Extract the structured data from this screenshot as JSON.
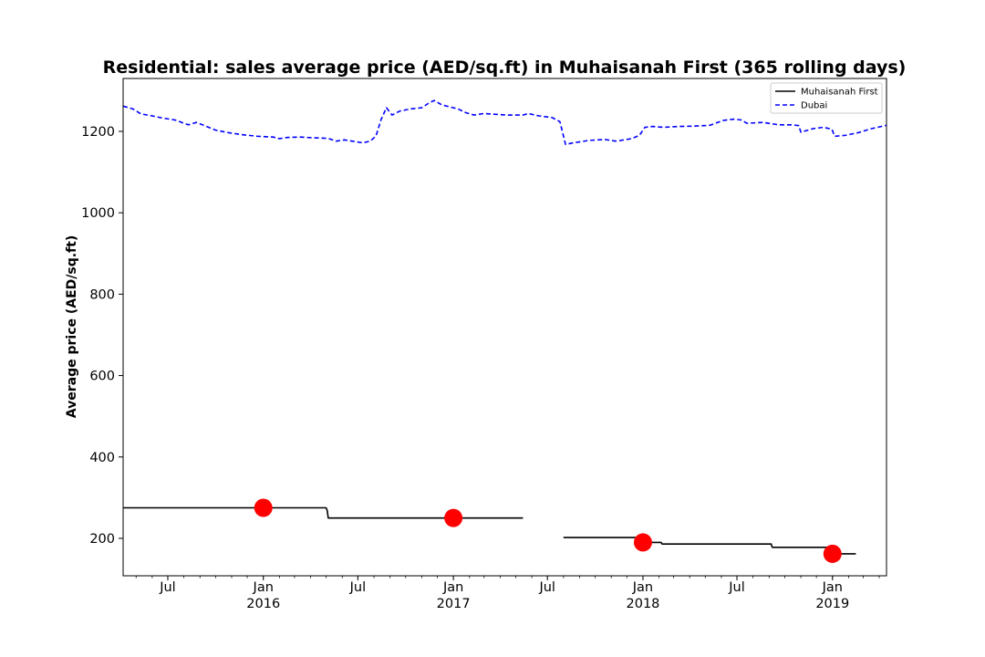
{
  "chart_data": {
    "type": "line",
    "title": "Residential: sales average price (AED/sq.ft) in Muhaisanah First (365 rolling days)",
    "xlabel": "",
    "ylabel": "Average price (AED/sq.ft)",
    "xlim": [
      "2015-04-06",
      "2019-04-15"
    ],
    "ylim": [
      108,
      1330
    ],
    "grid": false,
    "legend_position": "top-right",
    "y_ticks": [
      200,
      400,
      600,
      800,
      1000,
      1200
    ],
    "x_ticks": [
      {
        "date": "2015-07-01",
        "label": "Jul",
        "sublabel": ""
      },
      {
        "date": "2016-01-01",
        "label": "Jan",
        "sublabel": "2016"
      },
      {
        "date": "2016-07-01",
        "label": "Jul",
        "sublabel": ""
      },
      {
        "date": "2017-01-01",
        "label": "Jan",
        "sublabel": "2017"
      },
      {
        "date": "2017-07-01",
        "label": "Jul",
        "sublabel": ""
      },
      {
        "date": "2018-01-01",
        "label": "Jan",
        "sublabel": "2018"
      },
      {
        "date": "2018-07-01",
        "label": "Jul",
        "sublabel": ""
      },
      {
        "date": "2019-01-01",
        "label": "Jan",
        "sublabel": "2019"
      }
    ],
    "series": [
      {
        "name": "Muhaisanah First",
        "color": "#000000",
        "style": "solid",
        "segments": [
          [
            [
              "2015-04-06",
              275
            ],
            [
              "2016-05-01",
              275
            ],
            [
              "2016-05-03",
              268
            ],
            [
              "2016-05-05",
              250
            ],
            [
              "2017-05-15",
              250
            ]
          ],
          [
            [
              "2017-08-01",
              202
            ],
            [
              "2017-12-28",
              202
            ],
            [
              "2017-12-30",
              190
            ],
            [
              "2018-02-05",
              190
            ],
            [
              "2018-02-07",
              186
            ],
            [
              "2018-09-05",
              186
            ],
            [
              "2018-09-07",
              178
            ],
            [
              "2018-12-30",
              178
            ],
            [
              "2018-12-31",
              162
            ],
            [
              "2019-02-15",
              162
            ]
          ]
        ]
      },
      {
        "name": "Dubai",
        "color": "#0000ff",
        "style": "dashed",
        "points": [
          [
            "2015-04-06",
            1262
          ],
          [
            "2015-04-25",
            1255
          ],
          [
            "2015-05-10",
            1243
          ],
          [
            "2015-06-01",
            1238
          ],
          [
            "2015-06-20",
            1233
          ],
          [
            "2015-07-15",
            1228
          ],
          [
            "2015-08-10",
            1216
          ],
          [
            "2015-08-25",
            1222
          ],
          [
            "2015-09-10",
            1214
          ],
          [
            "2015-10-01",
            1203
          ],
          [
            "2015-10-25",
            1197
          ],
          [
            "2015-11-20",
            1192
          ],
          [
            "2015-12-20",
            1188
          ],
          [
            "2016-01-20",
            1186
          ],
          [
            "2016-02-01",
            1182
          ],
          [
            "2016-02-15",
            1185
          ],
          [
            "2016-03-10",
            1186
          ],
          [
            "2016-04-10",
            1184
          ],
          [
            "2016-05-05",
            1183
          ],
          [
            "2016-05-20",
            1176
          ],
          [
            "2016-06-05",
            1179
          ],
          [
            "2016-06-25",
            1175
          ],
          [
            "2016-07-10",
            1172
          ],
          [
            "2016-07-25",
            1176
          ],
          [
            "2016-08-05",
            1189
          ],
          [
            "2016-08-15",
            1230
          ],
          [
            "2016-08-25",
            1258
          ],
          [
            "2016-09-05",
            1240
          ],
          [
            "2016-09-20",
            1250
          ],
          [
            "2016-10-10",
            1255
          ],
          [
            "2016-11-01",
            1258
          ],
          [
            "2016-11-15",
            1270
          ],
          [
            "2016-11-25",
            1276
          ],
          [
            "2016-12-10",
            1265
          ],
          [
            "2017-01-10",
            1255
          ],
          [
            "2017-01-25",
            1246
          ],
          [
            "2017-02-10",
            1240
          ],
          [
            "2017-03-01",
            1244
          ],
          [
            "2017-03-20",
            1242
          ],
          [
            "2017-04-15",
            1240
          ],
          [
            "2017-05-15",
            1240
          ],
          [
            "2017-05-25",
            1244
          ],
          [
            "2017-06-15",
            1238
          ],
          [
            "2017-07-10",
            1234
          ],
          [
            "2017-07-25",
            1224
          ],
          [
            "2017-08-05",
            1168
          ],
          [
            "2017-08-20",
            1172
          ],
          [
            "2017-09-20",
            1178
          ],
          [
            "2017-10-20",
            1180
          ],
          [
            "2017-11-10",
            1176
          ],
          [
            "2017-12-10",
            1182
          ],
          [
            "2017-12-25",
            1190
          ],
          [
            "2018-01-05",
            1210
          ],
          [
            "2018-01-20",
            1212
          ],
          [
            "2018-02-10",
            1210
          ],
          [
            "2018-03-10",
            1212
          ],
          [
            "2018-04-10",
            1213
          ],
          [
            "2018-05-10",
            1215
          ],
          [
            "2018-06-05",
            1227
          ],
          [
            "2018-06-25",
            1230
          ],
          [
            "2018-07-10",
            1228
          ],
          [
            "2018-07-20",
            1220
          ],
          [
            "2018-08-20",
            1222
          ],
          [
            "2018-09-20",
            1216
          ],
          [
            "2018-10-15",
            1216
          ],
          [
            "2018-10-28",
            1214
          ],
          [
            "2018-11-01",
            1198
          ],
          [
            "2018-11-25",
            1207
          ],
          [
            "2018-12-15",
            1210
          ],
          [
            "2018-12-31",
            1205
          ],
          [
            "2019-01-05",
            1188
          ],
          [
            "2019-01-25",
            1190
          ],
          [
            "2019-02-20",
            1197
          ],
          [
            "2019-03-15",
            1206
          ],
          [
            "2019-04-15",
            1215
          ]
        ]
      }
    ],
    "annual_markers": {
      "color": "#ff0000",
      "points": [
        [
          "2016-01-01",
          275
        ],
        [
          "2017-01-01",
          250
        ],
        [
          "2018-01-01",
          190
        ],
        [
          "2019-01-01",
          162
        ]
      ]
    }
  }
}
